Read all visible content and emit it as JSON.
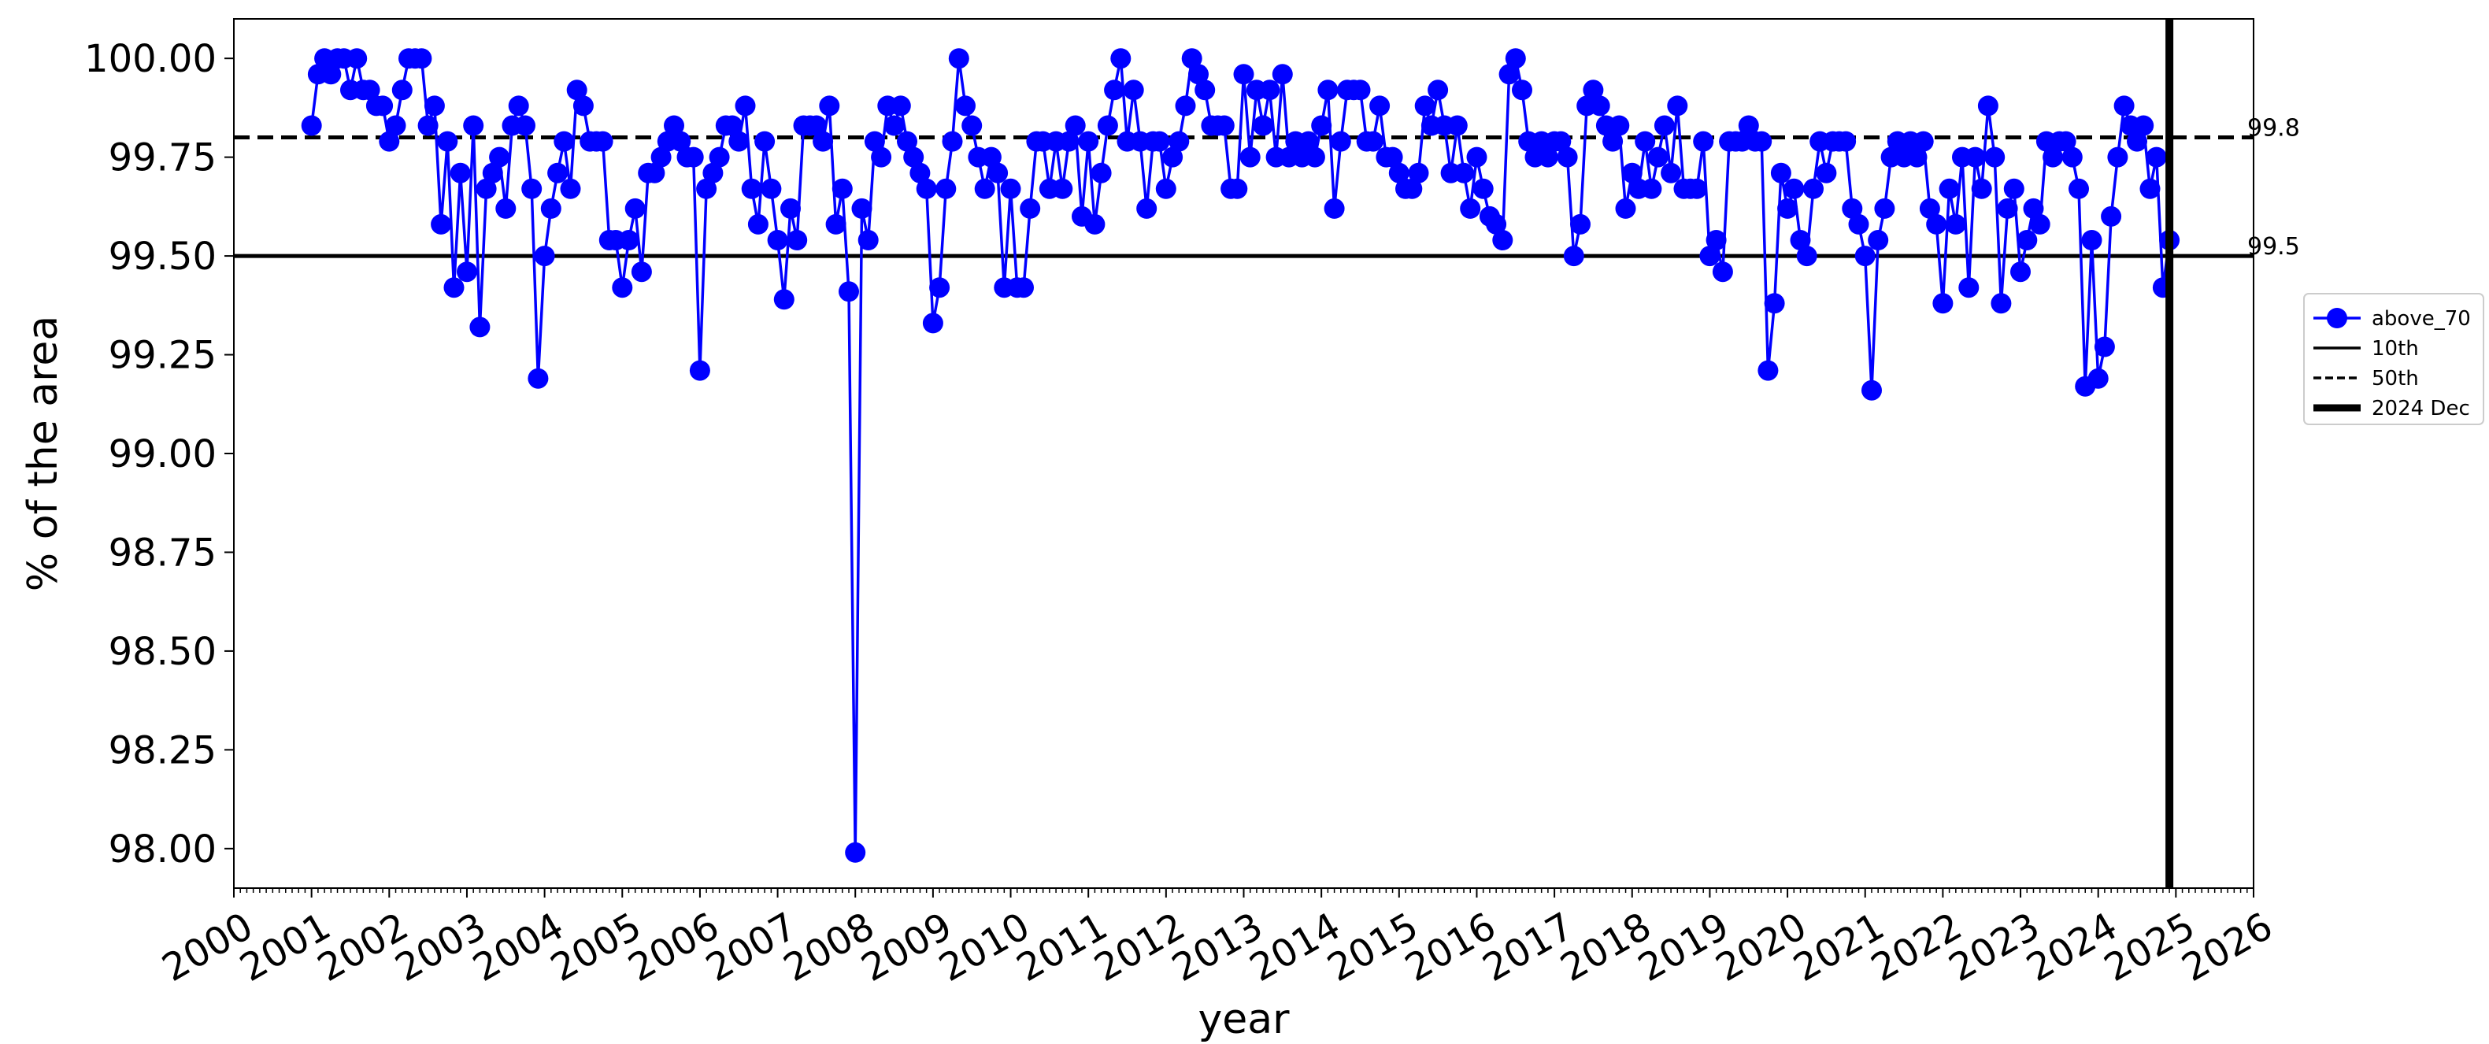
{
  "chart_data": {
    "type": "line",
    "title": "",
    "xlabel": "year",
    "ylabel": "% of the area",
    "xlim": [
      "2000-01-01",
      "2026-01-01"
    ],
    "ylim": [
      97.9,
      100.1
    ],
    "yticks": [
      "100.00",
      "99.75",
      "99.50",
      "99.25",
      "99.00",
      "98.75",
      "98.50",
      "98.25",
      "98.00"
    ],
    "xticks": [
      "2000",
      "2001",
      "2002",
      "2003",
      "2004",
      "2005",
      "2006",
      "2007",
      "2008",
      "2009",
      "2010",
      "2011",
      "2012",
      "2013",
      "2014",
      "2015",
      "2016",
      "2017",
      "2018",
      "2019",
      "2020",
      "2021",
      "2022",
      "2023",
      "2024",
      "2025",
      "2026"
    ],
    "grid": false,
    "legend_position": "right",
    "reference_lines": [
      {
        "name": "10th",
        "value": 99.5,
        "label": "99.5",
        "style": "solid",
        "color": "#000000"
      },
      {
        "name": "50th",
        "value": 99.8,
        "label": "99.8",
        "style": "dashed",
        "color": "#000000"
      }
    ],
    "vertical_line": {
      "name": "2024 Dec",
      "x": "2024-12-01",
      "color": "#000000"
    },
    "legend": [
      "above_70",
      "10th",
      "50th",
      "2024 Dec"
    ],
    "series": [
      {
        "name": "above_70",
        "color": "#0000ff",
        "x": [
          "2001-01",
          "2001-02",
          "2001-03",
          "2001-04",
          "2001-05",
          "2001-06",
          "2001-07",
          "2001-08",
          "2001-09",
          "2001-10",
          "2001-11",
          "2001-12",
          "2002-01",
          "2002-02",
          "2002-03",
          "2002-04",
          "2002-05",
          "2002-06",
          "2002-07",
          "2002-08",
          "2002-09",
          "2002-10",
          "2002-11",
          "2002-12",
          "2003-01",
          "2003-02",
          "2003-03",
          "2003-04",
          "2003-05",
          "2003-06",
          "2003-07",
          "2003-08",
          "2003-09",
          "2003-10",
          "2003-11",
          "2003-12",
          "2004-01",
          "2004-02",
          "2004-03",
          "2004-04",
          "2004-05",
          "2004-06",
          "2004-07",
          "2004-08",
          "2004-09",
          "2004-10",
          "2004-11",
          "2004-12",
          "2005-01",
          "2005-02",
          "2005-03",
          "2005-04",
          "2005-05",
          "2005-06",
          "2005-07",
          "2005-08",
          "2005-09",
          "2005-10",
          "2005-11",
          "2005-12",
          "2006-01",
          "2006-02",
          "2006-03",
          "2006-04",
          "2006-05",
          "2006-06",
          "2006-07",
          "2006-08",
          "2006-09",
          "2006-10",
          "2006-11",
          "2006-12",
          "2007-01",
          "2007-02",
          "2007-03",
          "2007-04",
          "2007-05",
          "2007-06",
          "2007-07",
          "2007-08",
          "2007-09",
          "2007-10",
          "2007-11",
          "2007-12",
          "2008-01",
          "2008-02",
          "2008-03",
          "2008-04",
          "2008-05",
          "2008-06",
          "2008-07",
          "2008-08",
          "2008-09",
          "2008-10",
          "2008-11",
          "2008-12",
          "2009-01",
          "2009-02",
          "2009-03",
          "2009-04",
          "2009-05",
          "2009-06",
          "2009-07",
          "2009-08",
          "2009-09",
          "2009-10",
          "2009-11",
          "2009-12",
          "2010-01",
          "2010-02",
          "2010-03",
          "2010-04",
          "2010-05",
          "2010-06",
          "2010-07",
          "2010-08",
          "2010-09",
          "2010-10",
          "2010-11",
          "2010-12",
          "2011-01",
          "2011-02",
          "2011-03",
          "2011-04",
          "2011-05",
          "2011-06",
          "2011-07",
          "2011-08",
          "2011-09",
          "2011-10",
          "2011-11",
          "2011-12",
          "2012-01",
          "2012-02",
          "2012-03",
          "2012-04",
          "2012-05",
          "2012-06",
          "2012-07",
          "2012-08",
          "2012-09",
          "2012-10",
          "2012-11",
          "2012-12",
          "2013-01",
          "2013-02",
          "2013-03",
          "2013-04",
          "2013-05",
          "2013-06",
          "2013-07",
          "2013-08",
          "2013-09",
          "2013-10",
          "2013-11",
          "2013-12",
          "2014-01",
          "2014-02",
          "2014-03",
          "2014-04",
          "2014-05",
          "2014-06",
          "2014-07",
          "2014-08",
          "2014-09",
          "2014-10",
          "2014-11",
          "2014-12",
          "2015-01",
          "2015-02",
          "2015-03",
          "2015-04",
          "2015-05",
          "2015-06",
          "2015-07",
          "2015-08",
          "2015-09",
          "2015-10",
          "2015-11",
          "2015-12",
          "2016-01",
          "2016-02",
          "2016-03",
          "2016-04",
          "2016-05",
          "2016-06",
          "2016-07",
          "2016-08",
          "2016-09",
          "2016-10",
          "2016-11",
          "2016-12",
          "2017-01",
          "2017-02",
          "2017-03",
          "2017-04",
          "2017-05",
          "2017-06",
          "2017-07",
          "2017-08",
          "2017-09",
          "2017-10",
          "2017-11",
          "2017-12",
          "2018-01",
          "2018-02",
          "2018-03",
          "2018-04",
          "2018-05",
          "2018-06",
          "2018-07",
          "2018-08",
          "2018-09",
          "2018-10",
          "2018-11",
          "2018-12",
          "2019-01",
          "2019-02",
          "2019-03",
          "2019-04",
          "2019-05",
          "2019-06",
          "2019-07",
          "2019-08",
          "2019-09",
          "2019-10",
          "2019-11",
          "2019-12",
          "2020-01",
          "2020-02",
          "2020-03",
          "2020-04",
          "2020-05",
          "2020-06",
          "2020-07",
          "2020-08",
          "2020-09",
          "2020-10",
          "2020-11",
          "2020-12",
          "2021-01",
          "2021-02",
          "2021-03",
          "2021-04",
          "2021-05",
          "2021-06",
          "2021-07",
          "2021-08",
          "2021-09",
          "2021-10",
          "2021-11",
          "2021-12",
          "2022-01",
          "2022-02",
          "2022-03",
          "2022-04",
          "2022-05",
          "2022-06",
          "2022-07",
          "2022-08",
          "2022-09",
          "2022-10",
          "2022-11",
          "2022-12",
          "2023-01",
          "2023-02",
          "2023-03",
          "2023-04",
          "2023-05",
          "2023-06",
          "2023-07",
          "2023-08",
          "2023-09",
          "2023-10",
          "2023-11",
          "2023-12",
          "2024-01",
          "2024-02",
          "2024-03",
          "2024-04",
          "2024-05",
          "2024-06",
          "2024-07",
          "2024-08",
          "2024-09",
          "2024-10",
          "2024-11",
          "2024-12"
        ],
        "values": [
          99.83,
          99.96,
          100.0,
          99.96,
          100.0,
          100.0,
          99.92,
          100.0,
          99.92,
          99.92,
          99.88,
          99.88,
          99.79,
          99.83,
          99.92,
          100.0,
          100.0,
          100.0,
          99.83,
          99.88,
          99.58,
          99.79,
          99.42,
          99.71,
          99.46,
          99.83,
          99.32,
          99.67,
          99.71,
          99.75,
          99.62,
          99.83,
          99.88,
          99.83,
          99.67,
          99.19,
          99.5,
          99.62,
          99.71,
          99.79,
          99.67,
          99.92,
          99.88,
          99.79,
          99.79,
          99.79,
          99.54,
          99.54,
          99.42,
          99.54,
          99.62,
          99.46,
          99.71,
          99.71,
          99.75,
          99.79,
          99.83,
          99.79,
          99.75,
          99.75,
          99.21,
          99.67,
          99.71,
          99.75,
          99.83,
          99.83,
          99.79,
          99.88,
          99.67,
          99.58,
          99.79,
          99.67,
          99.54,
          99.39,
          99.62,
          99.54,
          99.83,
          99.83,
          99.83,
          99.79,
          99.88,
          99.58,
          99.67,
          99.41,
          97.99,
          99.62,
          99.54,
          99.79,
          99.75,
          99.88,
          99.83,
          99.88,
          99.79,
          99.75,
          99.71,
          99.67,
          99.33,
          99.42,
          99.67,
          99.79,
          100.0,
          99.88,
          99.83,
          99.75,
          99.67,
          99.75,
          99.71,
          99.42,
          99.67,
          99.42,
          99.42,
          99.62,
          99.79,
          99.79,
          99.67,
          99.79,
          99.67,
          99.79,
          99.83,
          99.6,
          99.79,
          99.58,
          99.71,
          99.83,
          99.92,
          100.0,
          99.79,
          99.92,
          99.79,
          99.62,
          99.79,
          99.79,
          99.67,
          99.75,
          99.79,
          99.88,
          100.0,
          99.96,
          99.92,
          99.83,
          99.83,
          99.83,
          99.67,
          99.67,
          99.96,
          99.75,
          99.92,
          99.83,
          99.92,
          99.75,
          99.96,
          99.75,
          99.79,
          99.75,
          99.79,
          99.75,
          99.83,
          99.92,
          99.62,
          99.79,
          99.92,
          99.92,
          99.92,
          99.79,
          99.79,
          99.88,
          99.75,
          99.75,
          99.71,
          99.67,
          99.67,
          99.71,
          99.88,
          99.83,
          99.92,
          99.83,
          99.71,
          99.83,
          99.71,
          99.62,
          99.75,
          99.67,
          99.6,
          99.58,
          99.54,
          99.96,
          100.0,
          99.92,
          99.79,
          99.75,
          99.79,
          99.75,
          99.79,
          99.79,
          99.75,
          99.5,
          99.58,
          99.88,
          99.92,
          99.88,
          99.83,
          99.79,
          99.83,
          99.62,
          99.71,
          99.67,
          99.79,
          99.67,
          99.75,
          99.83,
          99.71,
          99.88,
          99.67,
          99.67,
          99.67,
          99.79,
          99.5,
          99.54,
          99.46,
          99.79,
          99.79,
          99.79,
          99.83,
          99.79,
          99.79,
          99.21,
          99.38,
          99.71,
          99.62,
          99.67,
          99.54,
          99.5,
          99.67,
          99.79,
          99.71,
          99.79,
          99.79,
          99.79,
          99.62,
          99.58,
          99.5,
          99.16,
          99.54,
          99.62,
          99.75,
          99.79,
          99.75,
          99.79,
          99.75,
          99.79,
          99.62,
          99.58,
          99.38,
          99.67,
          99.58,
          99.75,
          99.42,
          99.75,
          99.67,
          99.88,
          99.75,
          99.38,
          99.62,
          99.67,
          99.46,
          99.54,
          99.62,
          99.58,
          99.79,
          99.75,
          99.79,
          99.79,
          99.75,
          99.67,
          99.17,
          99.54,
          99.19,
          99.27,
          99.6,
          99.75,
          99.88,
          99.83,
          99.79,
          99.83,
          99.67,
          99.75,
          99.42,
          99.54
        ]
      }
    ]
  }
}
